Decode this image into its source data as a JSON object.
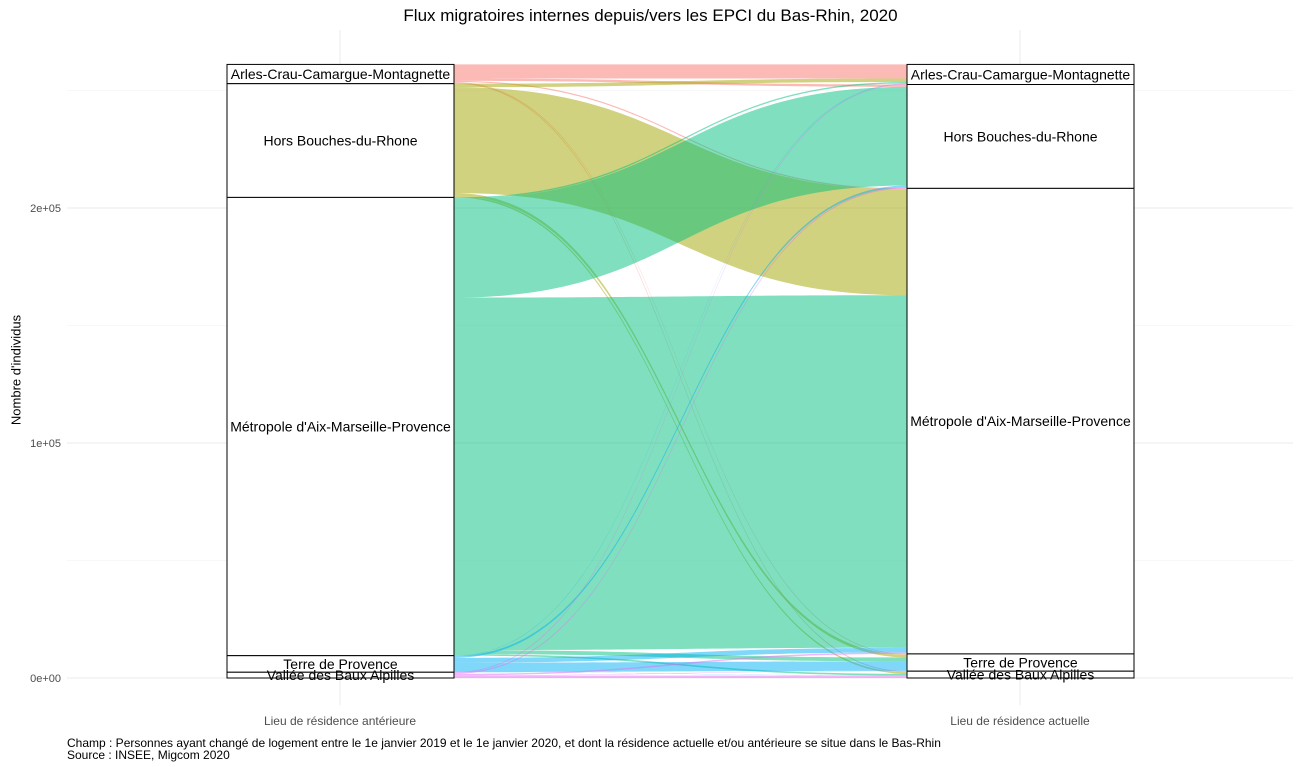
{
  "chart_data": {
    "type": "alluvial",
    "title": "Flux migratoires internes depuis/vers les EPCI du Bas-Rhin, 2020",
    "ylabel": "Nombre d'individus",
    "ylim": [
      0,
      262000
    ],
    "y_ticks": [
      0,
      100000,
      200000
    ],
    "y_tick_labels": [
      "0e+00",
      "1e+05",
      "2e+05"
    ],
    "axes": [
      "Lieu de résidence antérieure",
      "Lieu de résidence actuelle"
    ],
    "nodes": [
      "Arles-Crau-Camargue-Montagnette",
      "Hors Bouches-du-Rhone",
      "Métropole d'Aix-Marseille-Provence",
      "Terre de Provence",
      "Vallée des Baux Alpilles"
    ],
    "colors": {
      "Arles-Crau-Camargue-Montagnette": "#F8766D",
      "Hors Bouches-du-Rhone": "#A3A500",
      "Métropole d'Aix-Marseille-Provence": "#00BF7D",
      "Terre de Provence": "#00B0F6",
      "Vallée des Baux Alpilles": "#E76BF3"
    },
    "flows": [
      {
        "from": "Arles-Crau-Camargue-Montagnette",
        "to": "Arles-Crau-Camargue-Montagnette",
        "value": 6000
      },
      {
        "from": "Arles-Crau-Camargue-Montagnette",
        "to": "Hors Bouches-du-Rhone",
        "value": 1000
      },
      {
        "from": "Arles-Crau-Camargue-Montagnette",
        "to": "Métropole d'Aix-Marseille-Provence",
        "value": 500
      },
      {
        "from": "Arles-Crau-Camargue-Montagnette",
        "to": "Terre de Provence",
        "value": 300
      },
      {
        "from": "Arles-Crau-Camargue-Montagnette",
        "to": "Vallée des Baux Alpilles",
        "value": 400
      },
      {
        "from": "Hors Bouches-du-Rhone",
        "to": "Arles-Crau-Camargue-Montagnette",
        "value": 1500
      },
      {
        "from": "Hors Bouches-du-Rhone",
        "to": "Hors Bouches-du-Rhone",
        "value": 0
      },
      {
        "from": "Hors Bouches-du-Rhone",
        "to": "Métropole d'Aix-Marseille-Provence",
        "value": 45000
      },
      {
        "from": "Hors Bouches-du-Rhone",
        "to": "Terre de Provence",
        "value": 1200
      },
      {
        "from": "Hors Bouches-du-Rhone",
        "to": "Vallée des Baux Alpilles",
        "value": 700
      },
      {
        "from": "Métropole d'Aix-Marseille-Provence",
        "to": "Arles-Crau-Camargue-Montagnette",
        "value": 600
      },
      {
        "from": "Métropole d'Aix-Marseille-Provence",
        "to": "Hors Bouches-du-Rhone",
        "value": 42000
      },
      {
        "from": "Métropole d'Aix-Marseille-Provence",
        "to": "Métropole d'Aix-Marseille-Provence",
        "value": 150000
      },
      {
        "from": "Métropole d'Aix-Marseille-Provence",
        "to": "Terre de Provence",
        "value": 1700
      },
      {
        "from": "Métropole d'Aix-Marseille-Provence",
        "to": "Vallée des Baux Alpilles",
        "value": 700
      },
      {
        "from": "Terre de Provence",
        "to": "Arles-Crau-Camargue-Montagnette",
        "value": 150
      },
      {
        "from": "Terre de Provence",
        "to": "Hors Bouches-du-Rhone",
        "value": 800
      },
      {
        "from": "Terre de Provence",
        "to": "Métropole d'Aix-Marseille-Provence",
        "value": 2000
      },
      {
        "from": "Terre de Provence",
        "to": "Terre de Provence",
        "value": 4000
      },
      {
        "from": "Terre de Provence",
        "to": "Vallée des Baux Alpilles",
        "value": 100
      },
      {
        "from": "Vallée des Baux Alpilles",
        "to": "Arles-Crau-Camargue-Montagnette",
        "value": 300
      },
      {
        "from": "Vallée des Baux Alpilles",
        "to": "Hors Bouches-du-Rhone",
        "value": 400
      },
      {
        "from": "Vallée des Baux Alpilles",
        "to": "Métropole d'Aix-Marseille-Provence",
        "value": 600
      },
      {
        "from": "Vallée des Baux Alpilles",
        "to": "Terre de Provence",
        "value": 150
      },
      {
        "from": "Vallée des Baux Alpilles",
        "to": "Vallée des Baux Alpilles",
        "value": 1000
      }
    ],
    "grid": true,
    "legend": "none"
  },
  "caption": {
    "champ": "Champ : Personnes ayant changé de logement entre le 1e janvier 2019 et le 1e janvier 2020, et dont la résidence actuelle et/ou antérieure se situe dans le Bas-Rhin",
    "source": "Source : INSEE, Migcom 2020"
  }
}
